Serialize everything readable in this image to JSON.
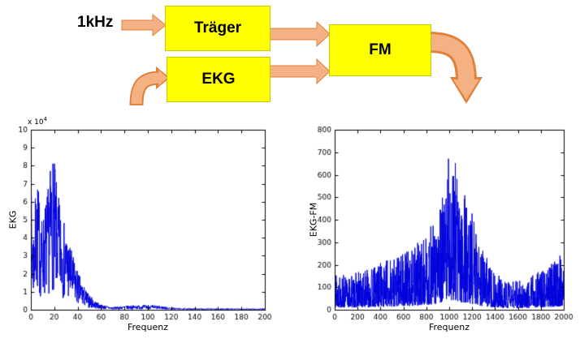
{
  "diagram": {
    "input_label": "1kHz",
    "blocks": {
      "traeger": "Träger",
      "ekg": "EKG",
      "fm": "FM"
    },
    "colors": {
      "block_fill": "#FFFF00",
      "block_border": "#C8C800",
      "arrow_fill": "#F4B183",
      "arrow_outline": "#E0813C"
    }
  },
  "chart_data": [
    {
      "type": "line",
      "name": "ekg-spectrum",
      "title": "",
      "xlabel": "Frequenz",
      "ylabel": "EKG",
      "y_scale_label": "x 10",
      "y_scale_exponent": "4",
      "xlim": [
        0,
        200
      ],
      "ylim": [
        0,
        10
      ],
      "xticks": [
        0,
        20,
        40,
        60,
        80,
        100,
        120,
        140,
        160,
        180,
        200
      ],
      "yticks": [
        0,
        1,
        2,
        3,
        4,
        5,
        6,
        7,
        8,
        9,
        10
      ],
      "grid": false,
      "legend": null,
      "line_color": "#0000DC",
      "envelope_x": [
        0,
        2,
        4,
        6,
        8,
        10,
        12,
        14,
        16,
        18,
        20,
        22,
        24,
        26,
        28,
        30,
        33,
        36,
        40,
        44,
        48,
        52,
        56,
        60,
        70,
        80,
        90,
        100,
        110,
        120,
        130,
        150,
        200
      ],
      "envelope_y": [
        7.0,
        4.5,
        6.5,
        7.3,
        5.5,
        5.0,
        6.0,
        6.5,
        7.5,
        8.7,
        8.3,
        7.0,
        6.2,
        5.5,
        5.0,
        4.5,
        3.8,
        3.0,
        2.2,
        1.5,
        1.0,
        0.7,
        0.45,
        0.3,
        0.15,
        0.22,
        0.25,
        0.28,
        0.22,
        0.12,
        0.08,
        0.07,
        0.06
      ],
      "noise_floor": 0.12,
      "noise_power": 1.0,
      "samples": 1000,
      "seed": 7,
      "description": "Noisy EKG magnitude spectrum (units x10^4): dominant energy 0-40, peak ~8.7 near 18, small ripple 70-110, near zero above 120"
    },
    {
      "type": "line",
      "name": "ekg-fm-spectrum",
      "title": "",
      "xlabel": "Frequenz",
      "ylabel": "EKG-FM",
      "xlim": [
        0,
        2000
      ],
      "ylim": [
        0,
        800
      ],
      "xticks": [
        0,
        200,
        400,
        600,
        800,
        1000,
        1200,
        1400,
        1600,
        1800,
        2000
      ],
      "yticks": [
        0,
        100,
        200,
        300,
        400,
        500,
        600,
        700,
        800
      ],
      "grid": false,
      "legend": null,
      "line_color": "#0000DC",
      "envelope_x": [
        0,
        50,
        100,
        200,
        300,
        400,
        500,
        600,
        700,
        800,
        850,
        900,
        950,
        1000,
        1030,
        1060,
        1100,
        1150,
        1200,
        1250,
        1300,
        1400,
        1500,
        1600,
        1700,
        1800,
        1900,
        1960,
        2000
      ],
      "envelope_y": [
        200,
        160,
        150,
        170,
        185,
        210,
        235,
        260,
        290,
        340,
        380,
        430,
        520,
        700,
        710,
        640,
        560,
        500,
        430,
        330,
        260,
        165,
        125,
        130,
        145,
        175,
        210,
        240,
        270
      ],
      "noise_floor": 0.06,
      "noise_power": 1.7,
      "samples": 1400,
      "seed": 13,
      "description": "Noisy FM-modulated EKG spectrum: broad band centered ~1000 Hz, max spike ~710, noise floor rising again toward 2000 Hz"
    }
  ]
}
